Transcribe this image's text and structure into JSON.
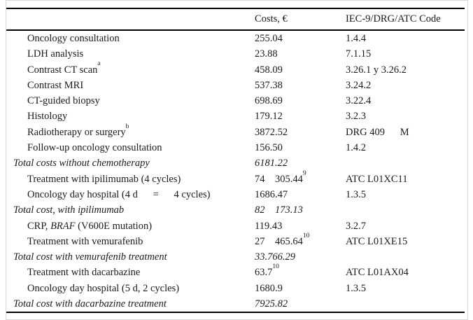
{
  "table": {
    "title": "Melanoma treatment costs and codes table",
    "columns": {
      "item": "",
      "costs": "Costs, €",
      "code": "IEC-9/DRG/ATC Code"
    },
    "rows": [
      {
        "kind": "item",
        "label": [
          [
            "Oncology consultation",
            ""
          ]
        ],
        "cost": [
          [
            "255.04",
            ""
          ]
        ],
        "code": "1.4.4"
      },
      {
        "kind": "item",
        "label": [
          [
            "LDH analysis",
            ""
          ]
        ],
        "cost": [
          [
            "23.88",
            ""
          ]
        ],
        "code": "7.1.15"
      },
      {
        "kind": "item",
        "label": [
          [
            "Contrast CT scan",
            ""
          ],
          [
            "a",
            "sup"
          ]
        ],
        "cost": [
          [
            "458.09",
            ""
          ]
        ],
        "code": "3.26.1 y 3.26.2"
      },
      {
        "kind": "item",
        "label": [
          [
            "Contrast MRI",
            ""
          ]
        ],
        "cost": [
          [
            "537.38",
            ""
          ]
        ],
        "code": "3.24.2"
      },
      {
        "kind": "item",
        "label": [
          [
            "CT-guided biopsy",
            ""
          ]
        ],
        "cost": [
          [
            "698.69",
            ""
          ]
        ],
        "code": "3.22.4"
      },
      {
        "kind": "item",
        "label": [
          [
            "Histology",
            ""
          ]
        ],
        "cost": [
          [
            "179.12",
            ""
          ]
        ],
        "code": "3.2.3"
      },
      {
        "kind": "item",
        "label": [
          [
            "Radiotherapy or surgery",
            ""
          ],
          [
            "b",
            "sup"
          ]
        ],
        "cost": [
          [
            "3872.52",
            ""
          ]
        ],
        "code": "DRG 409      M"
      },
      {
        "kind": "item",
        "label": [
          [
            "Follow-up oncology consultation",
            ""
          ]
        ],
        "cost": [
          [
            "156.50",
            ""
          ]
        ],
        "code": "1.4.2"
      },
      {
        "kind": "total",
        "label": [
          [
            "Total costs without chemotherapy",
            ""
          ]
        ],
        "cost": [
          [
            "6181.22",
            ""
          ]
        ],
        "code": ""
      },
      {
        "kind": "item",
        "label": [
          [
            "Treatment with ipilimumab (4 cycles)",
            ""
          ]
        ],
        "cost": [
          [
            "74    305.44",
            ""
          ],
          [
            "9",
            "sup"
          ]
        ],
        "code": "ATC L01XC11"
      },
      {
        "kind": "item",
        "label": [
          [
            "Oncology day hospital (4 d      =      4 cycles)",
            ""
          ]
        ],
        "cost": [
          [
            "1686.47",
            ""
          ]
        ],
        "code": "1.3.5"
      },
      {
        "kind": "total",
        "label": [
          [
            "Total cost, with ipilimumab",
            ""
          ]
        ],
        "cost": [
          [
            "82    173.13",
            ""
          ]
        ],
        "code": ""
      },
      {
        "kind": "item",
        "label": [
          [
            "CRP, ",
            ""
          ],
          [
            "BRAF",
            "i"
          ],
          [
            " (V600E mutation)",
            ""
          ]
        ],
        "cost": [
          [
            "119.43",
            ""
          ]
        ],
        "code": "3.2.7"
      },
      {
        "kind": "item",
        "label": [
          [
            "Treatment with vemurafenib",
            ""
          ]
        ],
        "cost": [
          [
            "27    465.64",
            ""
          ],
          [
            "10",
            "sup"
          ]
        ],
        "code": "ATC L01XE15"
      },
      {
        "kind": "total",
        "label": [
          [
            "Total cost with vemurafenib treatment",
            ""
          ]
        ],
        "cost": [
          [
            "33.766.29",
            ""
          ]
        ],
        "code": ""
      },
      {
        "kind": "item",
        "label": [
          [
            "Treatment with dacarbazine",
            ""
          ]
        ],
        "cost": [
          [
            "63.7",
            ""
          ],
          [
            "10",
            "sup"
          ]
        ],
        "code": "ATC L01AX04"
      },
      {
        "kind": "item",
        "label": [
          [
            "Oncology day hospital (5 d, 2 cycles)",
            ""
          ]
        ],
        "cost": [
          [
            "1680.9",
            ""
          ]
        ],
        "code": "1.3.5"
      },
      {
        "kind": "total",
        "label": [
          [
            "Total cost with dacarbazine treatment",
            ""
          ]
        ],
        "cost": [
          [
            "7925.82",
            ""
          ]
        ],
        "code": ""
      }
    ]
  },
  "colors": {
    "text": "#1b1b1b",
    "rule": "#000000",
    "frame_border": "#d8d8d8",
    "background": "#ffffff"
  }
}
